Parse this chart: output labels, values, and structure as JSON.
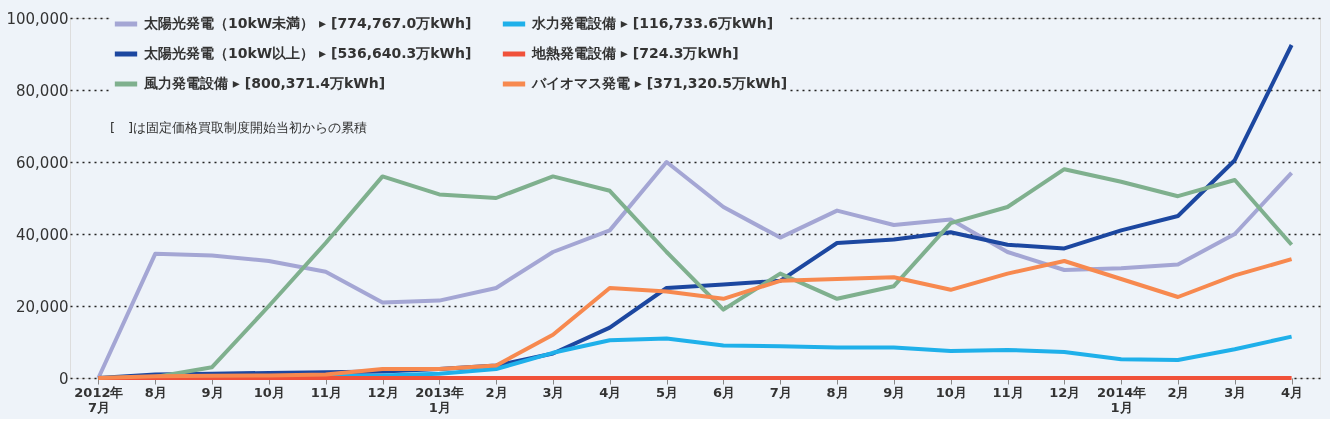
{
  "chart_data": {
    "type": "line",
    "categories": [
      "2012年\n7月",
      "8月",
      "9月",
      "10月",
      "11月",
      "12月",
      "2013年\n1月",
      "2月",
      "3月",
      "4月",
      "5月",
      "6月",
      "7月",
      "8月",
      "9月",
      "10月",
      "11月",
      "12月",
      "2014年\n1月",
      "2月",
      "3月",
      "4月"
    ],
    "series": [
      {
        "name": "太陽光発電（10kW未満） ▸ [774,767.0万kWh]",
        "color": "#a4a6d4",
        "values": [
          0,
          34500,
          34000,
          32500,
          29500,
          21000,
          21500,
          25000,
          35000,
          41000,
          60000,
          47500,
          39000,
          46500,
          42500,
          44000,
          35000,
          30000,
          30500,
          31500,
          40000,
          57000
        ]
      },
      {
        "name": "太陽光発電（10kW以上） ▸ [536,640.3万kWh]",
        "color": "#1c47a0",
        "values": [
          0,
          1000,
          1200,
          1400,
          1600,
          1800,
          2500,
          3500,
          6800,
          14000,
          25000,
          26000,
          27000,
          37500,
          38500,
          40500,
          37000,
          36000,
          41000,
          45000,
          60500,
          92500
        ]
      },
      {
        "name": "風力発電設備 ▸ [800,371.4万kWh]",
        "color": "#7fb08e",
        "values": [
          0,
          300,
          3000,
          20000,
          37500,
          56000,
          51000,
          50000,
          56000,
          52000,
          35000,
          19000,
          29000,
          22000,
          25500,
          43000,
          47500,
          58000,
          54500,
          50500,
          55000,
          37000
        ]
      },
      {
        "name": "水力発電設備 ▸ [116,733.6万kWh]",
        "color": "#1fb0ea",
        "values": [
          null,
          null,
          null,
          500,
          600,
          700,
          1200,
          2500,
          7000,
          10500,
          11000,
          9000,
          8800,
          8500,
          8500,
          7500,
          7800,
          7200,
          5200,
          5000,
          8000,
          11500
        ]
      },
      {
        "name": "地熱発電設備 ▸ [724.3万kWh]",
        "color": "#f0513a",
        "values": [
          0,
          0,
          0,
          0,
          0,
          0,
          0,
          0,
          0,
          0,
          0,
          0,
          0,
          0,
          0,
          0,
          0,
          0,
          0,
          0,
          0,
          0
        ]
      },
      {
        "name": "バイオマス発電 ▸ [371,320.5万kWh]",
        "color": "#f7894f",
        "values": [
          0,
          500,
          600,
          700,
          1000,
          2500,
          2500,
          3500,
          12000,
          25000,
          24000,
          22000,
          27000,
          27500,
          28000,
          24500,
          29000,
          32500,
          27500,
          22500,
          28500,
          33000
        ]
      }
    ],
    "ylim": [
      0,
      100000
    ],
    "yticks": [
      0,
      {
        "value": 20000,
        "label": "20,000"
      },
      {
        "value": 40000,
        "label": "40,000"
      },
      {
        "value": 60000,
        "label": "60,000"
      },
      {
        "value": 80000,
        "label": "80,000"
      },
      {
        "value": 100000,
        "label": "100,000"
      }
    ],
    "grid": "y",
    "legend": "top left",
    "marker": "none",
    "line_style": "solid",
    "annotations": [
      "[　]は固定価格買取制度開始当初からの累積"
    ]
  }
}
